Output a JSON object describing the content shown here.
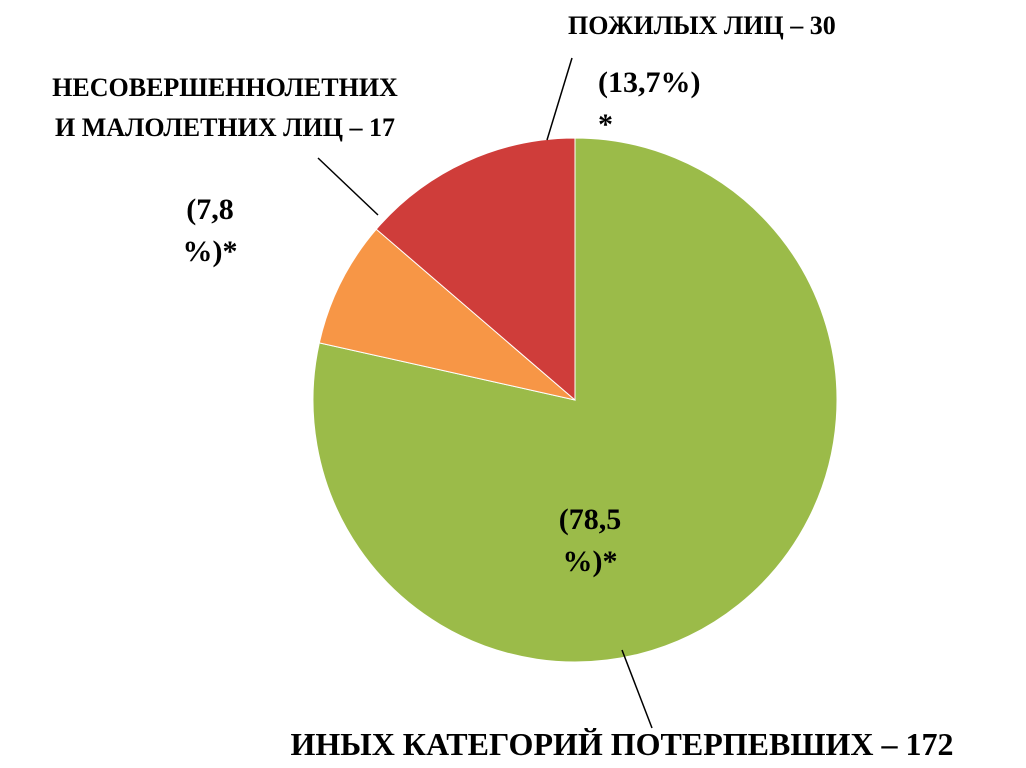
{
  "chart_data": {
    "type": "pie",
    "categories": [
      "ИНЫХ КАТЕГОРИЙ ПОТЕРПЕВШИХ – 172",
      "НЕСОВЕРШЕННОЛЕТНИХ\nИ МАЛОЛЕТНИХ ЛИЦ – 17",
      "ПОЖИЛЫХ ЛИЦ – 30"
    ],
    "values": [
      78.5,
      7.8,
      13.7
    ],
    "value_labels": [
      "(78,5\n%)*",
      "(7,8\n%)*",
      "(13,7%)\n*"
    ],
    "colors": [
      "#9bbb49",
      "#f79646",
      "#cf3d3a"
    ]
  }
}
